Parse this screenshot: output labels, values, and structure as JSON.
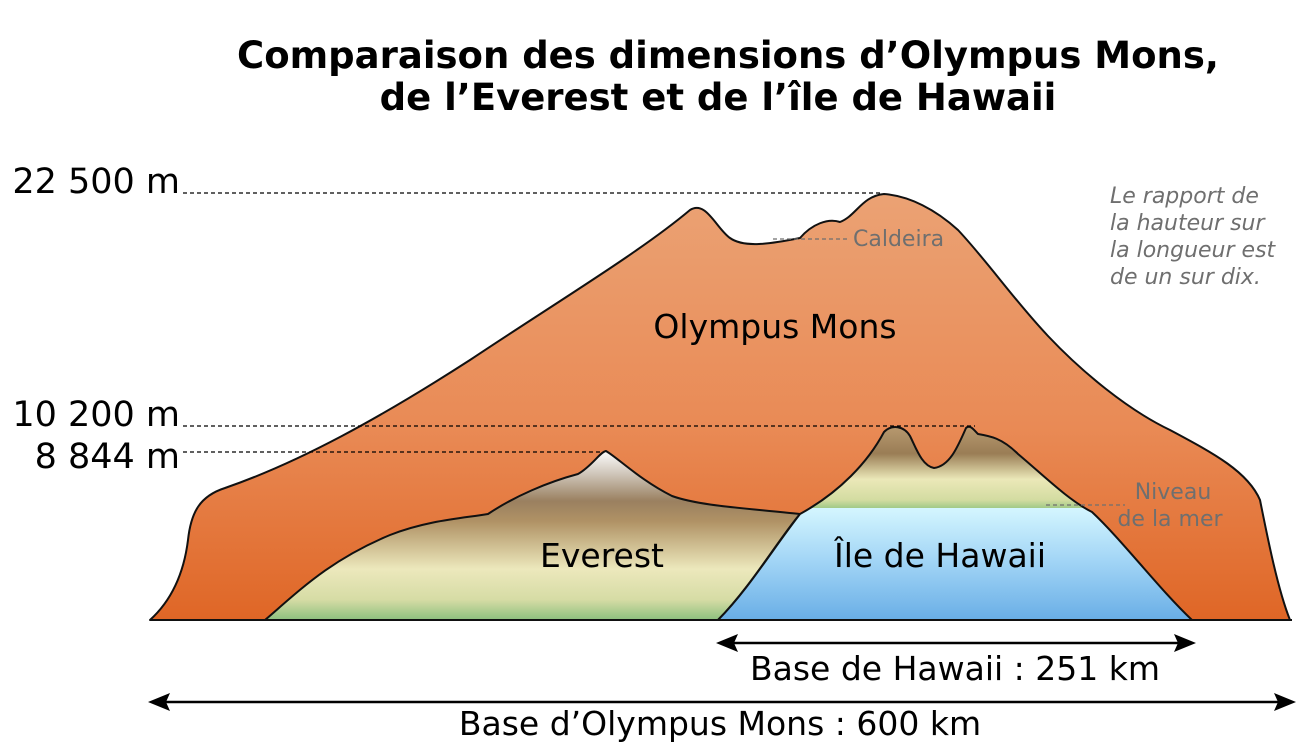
{
  "title": {
    "line1": "Comparaison des dimensions d’Olympus Mons,",
    "line2": "de l’Everest et de l’île de Hawaii"
  },
  "altitudes": {
    "top": "22 500 m",
    "mid": "10 200 m",
    "low": "8 844 m"
  },
  "labels": {
    "olympus": "Olympus Mons",
    "everest": "Everest",
    "hawaii": "Île de Hawaii",
    "caldeira": "Caldeira",
    "sea_level_1": "Niveau",
    "sea_level_2": "de la mer"
  },
  "note": {
    "line1": "Le rapport de",
    "line2": "la hauteur sur",
    "line3": "la longueur est",
    "line4": "de un sur dix."
  },
  "bases": {
    "hawaii": "Base de Hawaii : 251 km",
    "olympus": "Base d’Olympus Mons : 600 km"
  },
  "colors": {
    "olympus_top": "#e8a070",
    "olympus_bottom": "#e06a28",
    "sea_top": "#c8f0ff",
    "sea_bottom": "#6aaee6"
  }
}
